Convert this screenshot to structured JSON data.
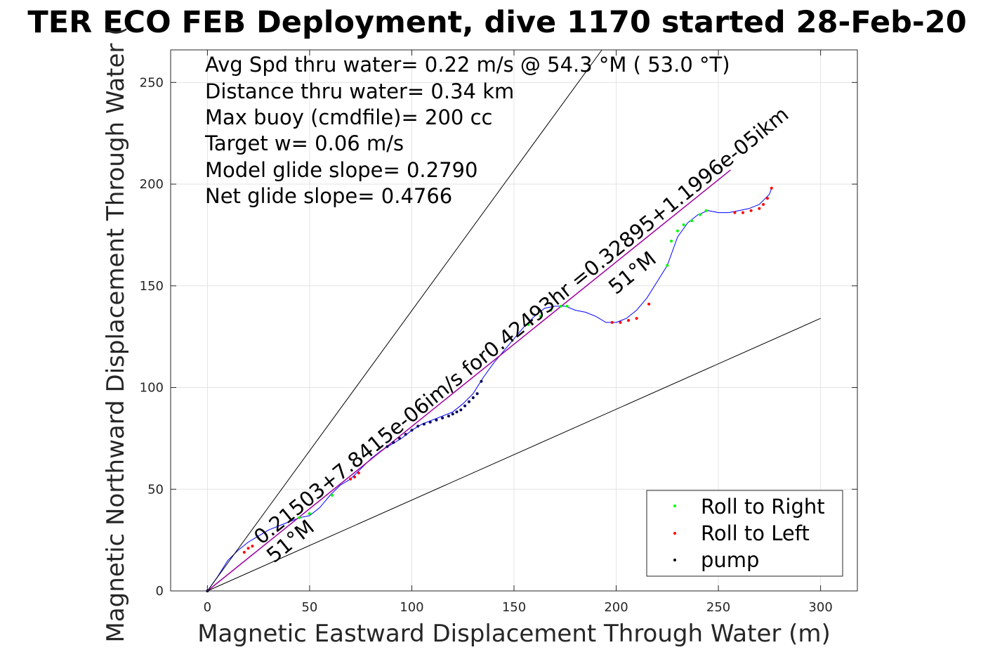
{
  "chart_data": {
    "type": "scatter",
    "title": "TER ECO FEB Deployment, dive 1170 started 28-Feb-20",
    "xlabel": "Magnetic Eastward Displacement Through Water (m)",
    "ylabel": "Magnetic Northward Displacement Through Water (",
    "xlim": [
      -18,
      318
    ],
    "ylim": [
      0,
      266
    ],
    "xticks": [
      0,
      50,
      100,
      150,
      200,
      250,
      300
    ],
    "yticks": [
      0,
      50,
      100,
      150,
      200,
      250
    ],
    "grid": true,
    "legend_position": "bottom-right",
    "info_lines": [
      "Avg Spd thru water=  0.22 m/s @  54.3 °M ( 53.0 °T)",
      "Distance thru water=  0.34 km",
      "Max buoy (cmdfile)= 200 cc",
      "Target w= 0.06 m/s",
      "Model glide slope= 0.2790",
      "Net glide slope= 0.4766"
    ],
    "annotations": {
      "segment_label": "0.21503+7.8415e-06im/s for0.42493hr =0.32895+1.1996e-05ikm",
      "heading_label_1": "51°M",
      "heading_label_2": "51°M"
    },
    "legend": [
      {
        "label": "Roll to Right",
        "color": "#00ff00"
      },
      {
        "label": "Roll to Left",
        "color": "#ff0000"
      },
      {
        "label": "pump",
        "color": "#000000"
      }
    ],
    "series": [
      {
        "name": "track",
        "color": "#0000ff",
        "x": [
          0,
          5,
          10,
          15,
          20,
          25,
          30,
          35,
          40,
          45,
          50,
          55,
          60,
          65,
          70,
          75,
          80,
          85,
          90,
          95,
          100,
          105,
          110,
          115,
          120,
          125,
          130,
          135,
          140,
          145,
          150,
          155,
          160,
          165,
          170,
          175,
          180,
          185,
          190,
          195,
          200,
          205,
          210,
          215,
          220,
          225,
          230,
          235,
          240,
          245,
          250,
          255,
          260,
          265,
          270,
          275,
          276
        ],
        "y": [
          0,
          7,
          15,
          20,
          24,
          27,
          30,
          32,
          34,
          36,
          37,
          41,
          47,
          52,
          55,
          60,
          65,
          69,
          72,
          75,
          79,
          82,
          84,
          86,
          88,
          92,
          97,
          105,
          112,
          118,
          124,
          130,
          135,
          139,
          140,
          140,
          138,
          137,
          135,
          132,
          132,
          134,
          138,
          144,
          152,
          160,
          174,
          181,
          185,
          187,
          186,
          186,
          187,
          188,
          190,
          195,
          198
        ]
      },
      {
        "name": "model",
        "color": "#a000a0",
        "x": [
          0,
          256
        ],
        "y": [
          0,
          207
        ]
      },
      {
        "name": "bound",
        "color": "#000000",
        "x": [
          0,
          193
        ],
        "y": [
          0,
          266
        ]
      },
      {
        "name": "bound",
        "color": "#000000",
        "x": [
          0,
          300
        ],
        "y": [
          0,
          134
        ]
      },
      {
        "name": "Roll to Right",
        "color": "#00ff00",
        "x": [
          45,
          50,
          61,
          157,
          163,
          168,
          173,
          176,
          225,
          227,
          230,
          233,
          237,
          241,
          244
        ],
        "y": [
          36,
          38,
          47,
          131,
          135,
          138,
          140,
          140,
          160,
          172,
          177,
          180,
          182,
          185,
          187
        ]
      },
      {
        "name": "Roll to Left",
        "color": "#ff0000",
        "x": [
          0,
          18,
          20,
          22,
          70,
          72,
          74,
          198,
          202,
          206,
          210,
          216,
          258,
          262,
          266,
          270,
          272,
          274,
          276
        ],
        "y": [
          0,
          19,
          21,
          22,
          55,
          56,
          58,
          132,
          132,
          133,
          134,
          141,
          186,
          186,
          187,
          188,
          190,
          193,
          198
        ]
      },
      {
        "name": "pump",
        "color": "#000000",
        "x": [
          0,
          88,
          91,
          94,
          97,
          100,
          103,
          106,
          109,
          112,
          115,
          118,
          120,
          122,
          124,
          126,
          128,
          130,
          132,
          134
        ],
        "y": [
          0,
          71,
          73,
          75,
          77,
          79,
          81,
          82,
          83,
          84,
          85,
          86,
          87,
          88,
          89,
          91,
          93,
          95,
          97,
          103
        ]
      }
    ]
  }
}
